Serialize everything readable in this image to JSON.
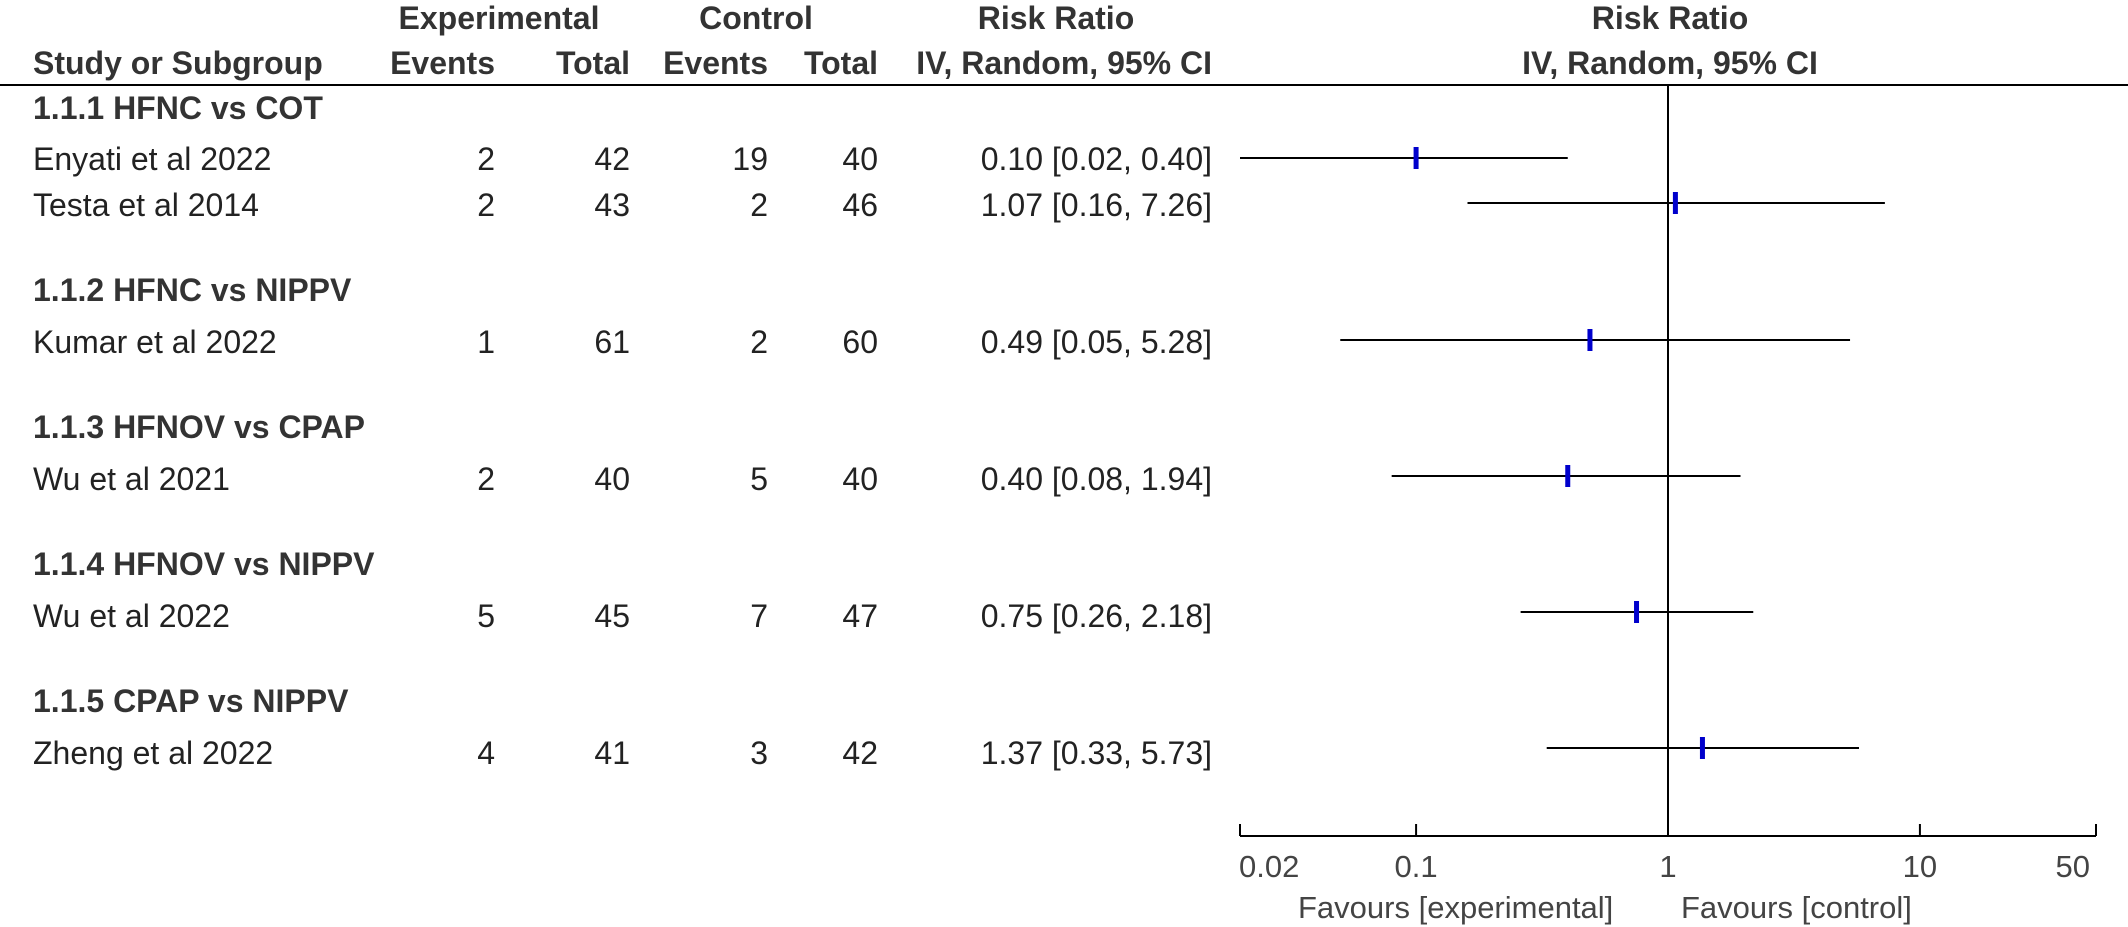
{
  "header": {
    "group_experimental": "Experimental",
    "group_control": "Control",
    "rr_title": "Risk Ratio",
    "plot_title": "Risk Ratio",
    "col_study": "Study or Subgroup",
    "col_exp_events": "Events",
    "col_exp_total": "Total",
    "col_ctl_events": "Events",
    "col_ctl_total": "Total",
    "col_method": "IV, Random, 95% CI",
    "plot_method": "IV, Random, 95% CI"
  },
  "groups": [
    {
      "label": "1.1.1 HFNC vs COT"
    },
    {
      "label": "1.1.2 HFNC vs NIPPV"
    },
    {
      "label": "1.1.3 HFNOV vs CPAP"
    },
    {
      "label": "1.1.4 HFNOV vs NIPPV"
    },
    {
      "label": "1.1.5 CPAP vs NIPPV"
    }
  ],
  "studies": [
    {
      "name": "Enyati et al 2022",
      "exp_events": "2",
      "exp_total": "42",
      "ctl_events": "19",
      "ctl_total": "40",
      "ci_text": "0.10 [0.02, 0.40]"
    },
    {
      "name": "Testa et al 2014",
      "exp_events": "2",
      "exp_total": "43",
      "ctl_events": "2",
      "ctl_total": "46",
      "ci_text": "1.07 [0.16, 7.26]"
    },
    {
      "name": "Kumar et al 2022",
      "exp_events": "1",
      "exp_total": "61",
      "ctl_events": "2",
      "ctl_total": "60",
      "ci_text": "0.49 [0.05, 5.28]"
    },
    {
      "name": "Wu et al 2021",
      "exp_events": "2",
      "exp_total": "40",
      "ctl_events": "5",
      "ctl_total": "40",
      "ci_text": "0.40 [0.08, 1.94]"
    },
    {
      "name": "Wu et al 2022",
      "exp_events": "5",
      "exp_total": "45",
      "ctl_events": "7",
      "ctl_total": "47",
      "ci_text": "0.75 [0.26, 2.18]"
    },
    {
      "name": "Zheng et al 2022",
      "exp_events": "4",
      "exp_total": "41",
      "ctl_events": "3",
      "ctl_total": "42",
      "ci_text": "1.37 [0.33, 5.73]"
    }
  ],
  "footer": {
    "favours_left": "Favours [experimental]",
    "favours_right": "Favours [control]"
  },
  "colors": {
    "point": "#0000cc",
    "line": "#000000",
    "text": "#333333"
  },
  "chart_data": {
    "type": "forest",
    "scale": "log",
    "xlim": [
      0.02,
      50
    ],
    "null_value": 1,
    "ticks": [
      0.02,
      0.1,
      1,
      10,
      50
    ],
    "tick_labels": [
      "0.02",
      "0.1",
      "1",
      "10",
      "50"
    ],
    "categories": [
      "Enyati et al 2022",
      "Testa et al 2014",
      "Kumar et al 2022",
      "Wu et al 2021",
      "Wu et al 2022",
      "Zheng et al 2022"
    ],
    "series": [
      {
        "values": [
          0.1,
          1.07,
          0.49,
          0.4,
          0.75,
          1.37
        ],
        "ci_lower": [
          0.02,
          0.16,
          0.05,
          0.08,
          0.26,
          0.33
        ],
        "ci_upper": [
          0.4,
          7.26,
          5.28,
          1.94,
          2.18,
          5.73
        ]
      }
    ]
  }
}
